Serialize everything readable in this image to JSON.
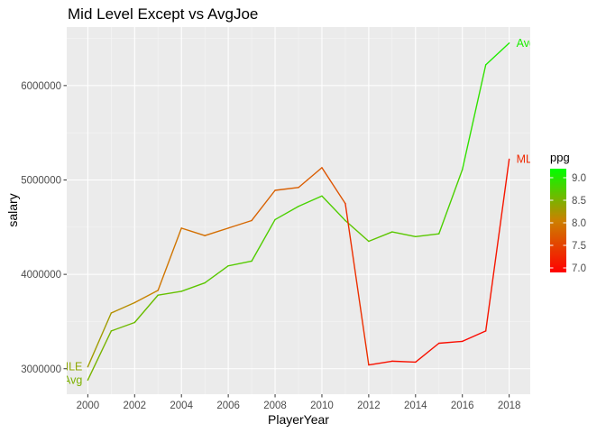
{
  "chart_data": {
    "type": "line",
    "title": "Mid Level Except vs AvgJoe",
    "xlabel": "PlayerYear",
    "ylabel": "salary",
    "xlim": [
      1999.1,
      2018.9
    ],
    "ylim": [
      2730000,
      6620000
    ],
    "x_ticks": [
      2000,
      2002,
      2004,
      2006,
      2008,
      2010,
      2012,
      2014,
      2016,
      2018
    ],
    "x_tick_labels": [
      "2000",
      "2002",
      "2004",
      "2006",
      "2008",
      "2010",
      "2012",
      "2014",
      "2016",
      "2018"
    ],
    "y_ticks": [
      3000000,
      4000000,
      5000000,
      6000000
    ],
    "y_tick_labels": [
      "3000000",
      "4000000",
      "5000000",
      "6000000"
    ],
    "grid": true,
    "color_scale": {
      "name": "ppg",
      "low": 6.9,
      "high": 9.2,
      "low_color": "#ff0000",
      "mid_color": "#cc8000",
      "high_color": "#00ff00",
      "legend_ticks": [
        7.0,
        7.5,
        8.0,
        8.5,
        9.0
      ],
      "legend_tick_labels": [
        "7.0",
        "7.5",
        "8.0",
        "8.5",
        "9.0"
      ],
      "legend_position": "right"
    },
    "series": [
      {
        "name": "Avg",
        "start_label": "Avg",
        "end_label": "Avg",
        "x": [
          2000,
          2001,
          2002,
          2003,
          2004,
          2005,
          2006,
          2007,
          2008,
          2009,
          2010,
          2011,
          2012,
          2013,
          2014,
          2015,
          2016,
          2017,
          2018
        ],
        "y": [
          2880000,
          3400000,
          3490000,
          3780000,
          3820000,
          3910000,
          4090000,
          4140000,
          4580000,
          4720000,
          4830000,
          4570000,
          4350000,
          4450000,
          4400000,
          4430000,
          5110000,
          6220000,
          6450000
        ],
        "ppg": [
          8.5,
          8.55,
          8.6,
          8.6,
          8.65,
          8.7,
          8.7,
          8.75,
          8.75,
          8.8,
          8.8,
          8.7,
          8.65,
          8.7,
          8.7,
          8.7,
          8.85,
          9.0,
          9.05
        ]
      },
      {
        "name": "MLE",
        "start_label": "MLE",
        "end_label": "MLE",
        "x": [
          2000,
          2001,
          2002,
          2003,
          2004,
          2005,
          2006,
          2007,
          2008,
          2009,
          2010,
          2011,
          2012,
          2013,
          2014,
          2015,
          2016,
          2017,
          2018
        ],
        "y": [
          3020000,
          3590000,
          3700000,
          3830000,
          4490000,
          4410000,
          4490000,
          4570000,
          4890000,
          4920000,
          5130000,
          4750000,
          3040000,
          3080000,
          3070000,
          3270000,
          3290000,
          3400000,
          5220000
        ],
        "ppg": [
          8.4,
          8.2,
          8.15,
          8.0,
          7.9,
          7.9,
          7.85,
          7.8,
          7.75,
          7.75,
          7.7,
          7.6,
          7.05,
          7.05,
          7.05,
          7.05,
          7.0,
          6.95,
          7.25
        ]
      }
    ]
  }
}
